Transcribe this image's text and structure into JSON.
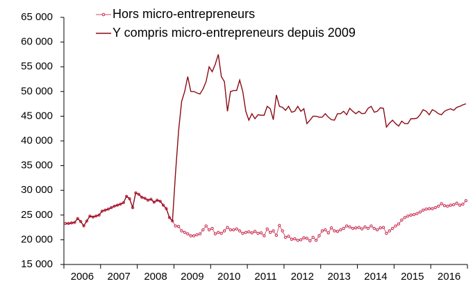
{
  "chart_data": {
    "type": "line",
    "categories": [
      null,
      null,
      null,
      null,
      null,
      null,
      "2006",
      null,
      null,
      null,
      null,
      null,
      null,
      null,
      null,
      null,
      null,
      null,
      "2007",
      null,
      null,
      null,
      null,
      null,
      null,
      null,
      null,
      null,
      null,
      null,
      "2008",
      null,
      null,
      null,
      null,
      null,
      null,
      null,
      null,
      null,
      null,
      null,
      "2009",
      null,
      null,
      null,
      null,
      null,
      null,
      null,
      null,
      null,
      null,
      null,
      "2010",
      null,
      null,
      null,
      null,
      null,
      null,
      null,
      null,
      null,
      null,
      null,
      "2011",
      null,
      null,
      null,
      null,
      null,
      null,
      null,
      null,
      null,
      null,
      null,
      "2012",
      null,
      null,
      null,
      null,
      null,
      null,
      null,
      null,
      null,
      null,
      null,
      "2013",
      null,
      null,
      null,
      null,
      null,
      null,
      null,
      null,
      null,
      null,
      null,
      "2014",
      null,
      null,
      null,
      null,
      null,
      null,
      null,
      null,
      null,
      null,
      null,
      "2015",
      null,
      null,
      null,
      null,
      null,
      null,
      null,
      null,
      null,
      null,
      null,
      "2016",
      null,
      null,
      null,
      null,
      null
    ],
    "series": [
      {
        "name": "Hors micro-entrepreneurs",
        "color": "#c0143c",
        "markers": true,
        "values": [
          23300,
          23300,
          23400,
          23500,
          24300,
          23700,
          22800,
          23800,
          24800,
          24600,
          24800,
          25000,
          25800,
          26000,
          26200,
          26500,
          26800,
          27000,
          27200,
          27500,
          28800,
          28300,
          26500,
          29500,
          29200,
          28600,
          28400,
          28000,
          28200,
          27600,
          28000,
          27800,
          27000,
          26300,
          24500,
          23800,
          22800,
          22700,
          21800,
          21500,
          21200,
          20800,
          20800,
          21000,
          21200,
          22000,
          22800,
          22000,
          22300,
          21200,
          21500,
          21300,
          21800,
          22500,
          22000,
          22000,
          22200,
          21800,
          21300,
          21500,
          21600,
          21400,
          21700,
          21300,
          21400,
          20800,
          22200,
          21500,
          21800,
          20900,
          22900,
          21800,
          20500,
          20700,
          20100,
          20200,
          19900,
          20000,
          20400,
          20300,
          19800,
          20500,
          19900,
          20800,
          21800,
          22000,
          21400,
          22400,
          21800,
          21700,
          22000,
          22300,
          22800,
          22600,
          22300,
          22400,
          22500,
          22200,
          22600,
          22300,
          22800,
          22300,
          22000,
          22400,
          22500,
          21300,
          21800,
          22300,
          22800,
          23200,
          24000,
          24500,
          24800,
          25000,
          25100,
          25300,
          25600,
          26000,
          26200,
          26300,
          26300,
          26500,
          26800,
          27300,
          26900,
          26800,
          27000,
          27100,
          27400,
          27000,
          27200,
          27900
        ]
      },
      {
        "name": "Y compris micro-entrepreneurs depuis 2009",
        "color": "#8b0a14",
        "markers": false,
        "values": [
          23300,
          23300,
          23400,
          23500,
          24300,
          23700,
          22800,
          23800,
          24800,
          24600,
          24800,
          25000,
          25800,
          26000,
          26200,
          26500,
          26800,
          27000,
          27200,
          27500,
          28800,
          28300,
          26500,
          29500,
          29200,
          28600,
          28400,
          28000,
          28200,
          27600,
          28000,
          27800,
          27000,
          26300,
          24500,
          23800,
          33500,
          42000,
          48000,
          50000,
          53000,
          50000,
          50000,
          49700,
          49500,
          50500,
          52000,
          55000,
          54000,
          55500,
          57500,
          53000,
          52000,
          46000,
          50000,
          50200,
          50200,
          52300,
          50000,
          46000,
          44200,
          45500,
          44500,
          45300,
          45200,
          45200,
          47000,
          46500,
          44300,
          49300,
          47000,
          46800,
          46200,
          47000,
          45800,
          46000,
          47000,
          46000,
          46500,
          43500,
          44200,
          45000,
          45000,
          44800,
          44800,
          45500,
          44800,
          44300,
          44200,
          45500,
          45500,
          46000,
          45300,
          46600,
          46000,
          45500,
          46000,
          45500,
          45600,
          46600,
          47000,
          45800,
          46000,
          46700,
          46600,
          42800,
          43600,
          44200,
          43500,
          43000,
          44000,
          43500,
          43500,
          44500,
          44500,
          44600,
          45300,
          46300,
          46000,
          45300,
          46300,
          46000,
          45500,
          45300,
          46000,
          46300,
          46500,
          46200,
          46800,
          47000,
          47300,
          47500
        ]
      }
    ],
    "ylim": [
      15000,
      65000
    ],
    "yticks": [
      {
        "value": 15000,
        "label": "15 000"
      },
      {
        "value": 20000,
        "label": "20 000"
      },
      {
        "value": 25000,
        "label": "25 000"
      },
      {
        "value": 30000,
        "label": "30 000"
      },
      {
        "value": 35000,
        "label": "35 000"
      },
      {
        "value": 40000,
        "label": "40 000"
      },
      {
        "value": 45000,
        "label": "45 000"
      },
      {
        "value": 50000,
        "label": "50 000"
      },
      {
        "value": 55000,
        "label": "55 000"
      },
      {
        "value": 60000,
        "label": "60 000"
      },
      {
        "value": 65000,
        "label": "65 000"
      }
    ],
    "grid": false
  }
}
